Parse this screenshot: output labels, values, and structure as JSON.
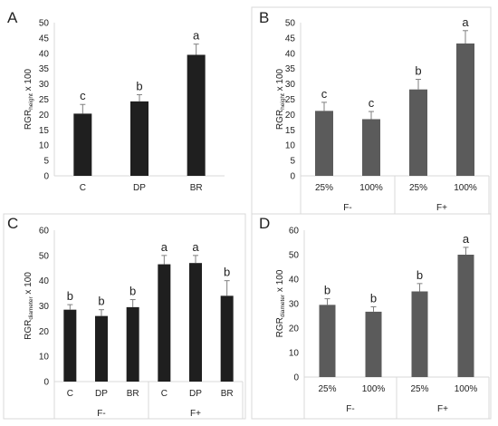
{
  "chart_data": [
    {
      "panel": "A",
      "type": "bar",
      "categories": [
        "C",
        "DP",
        "BR"
      ],
      "values": [
        20.3,
        24.3,
        39.5
      ],
      "errors": [
        3.0,
        2.2,
        3.5
      ],
      "letters": [
        "c",
        "b",
        "a"
      ],
      "ylabel": {
        "main": "RGR",
        "sub": "height",
        "suffix": " x 100"
      },
      "ylim": [
        0,
        50
      ],
      "ytick_step": 5,
      "groups": [],
      "bar_color": "#1f1f1f",
      "grid": false
    },
    {
      "panel": "B",
      "type": "bar",
      "categories": [
        "25%",
        "100%",
        "25%",
        "100%"
      ],
      "values": [
        21.2,
        18.5,
        28.2,
        43.2
      ],
      "errors": [
        2.8,
        2.5,
        3.3,
        4.2
      ],
      "letters": [
        "c",
        "c",
        "b",
        "a"
      ],
      "ylabel": {
        "main": "RGR",
        "sub": "height",
        "suffix": " x 100"
      },
      "ylim": [
        0,
        50
      ],
      "ytick_step": 5,
      "groups": [
        {
          "label": "F-",
          "span": 2
        },
        {
          "label": "F+",
          "span": 2
        }
      ],
      "bar_color": "#5b5b5b",
      "grid": false
    },
    {
      "panel": "C",
      "type": "bar",
      "categories": [
        "C",
        "DP",
        "BR",
        "C",
        "DP",
        "BR"
      ],
      "values": [
        28.5,
        26.0,
        29.5,
        46.5,
        47.0,
        34.0
      ],
      "errors": [
        2.0,
        2.5,
        3.0,
        3.5,
        3.0,
        6.0
      ],
      "letters": [
        "b",
        "b",
        "b",
        "a",
        "a",
        "b"
      ],
      "ylabel": {
        "main": "RGR",
        "sub": "diameter",
        "suffix": " x 100"
      },
      "ylim": [
        0,
        60
      ],
      "ytick_step": 10,
      "groups": [
        {
          "label": "F-",
          "span": 3
        },
        {
          "label": "F+",
          "span": 3
        }
      ],
      "bar_color": "#1f1f1f",
      "grid": false
    },
    {
      "panel": "D",
      "type": "bar",
      "categories": [
        "25%",
        "100%",
        "25%",
        "100%"
      ],
      "values": [
        29.5,
        26.7,
        35.0,
        50.0
      ],
      "errors": [
        2.5,
        2.0,
        3.2,
        3.0
      ],
      "letters": [
        "b",
        "b",
        "b",
        "a"
      ],
      "ylabel": {
        "main": "RGR",
        "sub": "diameter",
        "suffix": " x 100"
      },
      "ylim": [
        0,
        60
      ],
      "ytick_step": 10,
      "groups": [
        {
          "label": "F-",
          "span": 2
        },
        {
          "label": "F+",
          "span": 2
        }
      ],
      "bar_color": "#5b5b5b",
      "grid": false
    }
  ]
}
